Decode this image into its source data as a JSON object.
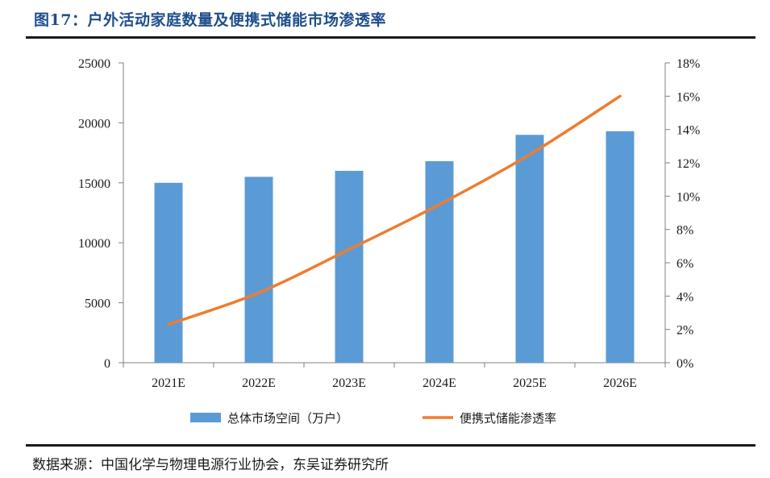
{
  "figure": {
    "title": "图17：户外活动家庭数量及便携式储能市场渗透率",
    "source": "数据来源：中国化学与物理电源行业协会，东吴证券研究所"
  },
  "chart_data": {
    "type": "bar+line",
    "title": "户外活动家庭数量及便携式储能市场渗透率",
    "categories": [
      "2021E",
      "2022E",
      "2023E",
      "2024E",
      "2025E",
      "2026E"
    ],
    "series": [
      {
        "name": "总体市场空间（万户）",
        "type": "bar",
        "axis": "left",
        "color": "#5b9bd5",
        "values": [
          15000,
          15500,
          16000,
          16800,
          19000,
          19300
        ]
      },
      {
        "name": "便携式储能渗透率",
        "type": "line",
        "axis": "right",
        "color": "#ed7d31",
        "values": [
          2.3,
          4.2,
          6.8,
          9.5,
          12.5,
          16.0
        ]
      }
    ],
    "y_left": {
      "min": 0,
      "max": 25000,
      "ticks": [
        "0",
        "5000",
        "10000",
        "15000",
        "20000",
        "25000"
      ]
    },
    "y_right": {
      "min": 0,
      "max": 18,
      "unit": "%",
      "ticks": [
        "0%",
        "2%",
        "4%",
        "6%",
        "8%",
        "10%",
        "12%",
        "14%",
        "16%",
        "18%"
      ]
    },
    "legend_position": "bottom",
    "grid": false
  }
}
